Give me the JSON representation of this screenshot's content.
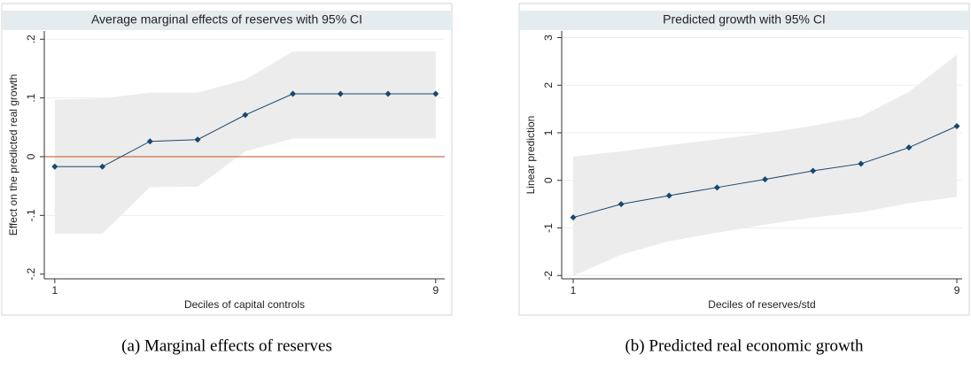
{
  "chart_data": [
    {
      "type": "line",
      "title": "Average marginal effects of reserves with 95% CI",
      "x_label": "Deciles of capital controls",
      "y_label": "Effect on the predicted real growth",
      "caption": "(a) Marginal effects of reserves",
      "x": [
        1,
        2,
        3,
        4,
        5,
        6,
        7,
        8,
        9
      ],
      "values": [
        -0.017,
        -0.017,
        0.026,
        0.029,
        0.071,
        0.107,
        0.107,
        0.107,
        0.107
      ],
      "ci_upper": [
        0.097,
        0.099,
        0.109,
        0.109,
        0.131,
        0.179,
        0.179,
        0.179,
        0.179
      ],
      "ci_lower": [
        -0.131,
        -0.131,
        -0.052,
        -0.051,
        0.009,
        0.031,
        0.031,
        0.031,
        0.031
      ],
      "color": "#1a476f",
      "band_color": "#ececec",
      "refline": 0,
      "refline_color": "#c8744a",
      "xlim": [
        0.78,
        9.19
      ],
      "xticks": [
        1,
        9
      ],
      "ylim": [
        -0.208,
        0.214
      ],
      "yticks": [
        {
          "value": -0.2,
          "label": "-.2"
        },
        {
          "value": -0.1,
          "label": "-.1"
        },
        0,
        {
          "value": 0.1,
          "label": ".1"
        },
        {
          "value": 0.2,
          "label": ".2"
        }
      ],
      "grid": true
    },
    {
      "type": "line",
      "title": "Predicted growth with 95% CI",
      "x_label": "Deciles of reserves/std",
      "y_label": "Linear prediction",
      "caption": "(b) Predicted real economic growth",
      "x": [
        1,
        2,
        3,
        4,
        5,
        6,
        7,
        8,
        9
      ],
      "values": [
        -0.78,
        -0.5,
        -0.32,
        -0.15,
        0.02,
        0.2,
        0.35,
        0.69,
        1.14
      ],
      "ci_upper": [
        0.5,
        0.61,
        0.74,
        0.86,
        0.99,
        1.15,
        1.34,
        1.86,
        2.64
      ],
      "ci_lower": [
        -2.01,
        -1.56,
        -1.28,
        -1.1,
        -0.93,
        -0.78,
        -0.67,
        -0.48,
        -0.35
      ],
      "color": "#1a476f",
      "band_color": "#ececec",
      "xlim": [
        0.76,
        9.11
      ],
      "xticks": [
        1,
        9
      ],
      "ylim": [
        -2.07,
        3.14
      ],
      "yticks": [
        -2,
        -1,
        0,
        1,
        2,
        3
      ],
      "grid": true
    }
  ]
}
